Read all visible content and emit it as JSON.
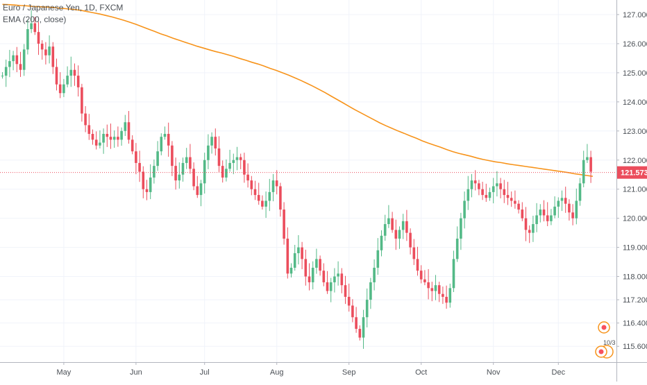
{
  "chart_data": {
    "type": "candlestick",
    "title": "Euro / Japanese Yen, 1D, FXCM",
    "indicator_label": "EMA (200, close)",
    "y_axis_ticks": [
      "127.000",
      "126.000",
      "125.000",
      "124.000",
      "123.000",
      "122.000",
      "121.000",
      "120.000",
      "119.000",
      "118.000",
      "117.200",
      "116.400",
      "115.600"
    ],
    "y_axis_tick_values": [
      127.0,
      126.0,
      125.0,
      124.0,
      123.0,
      122.0,
      121.0,
      120.0,
      119.0,
      118.0,
      117.2,
      116.4,
      115.6
    ],
    "x_axis_ticks": [
      "May",
      "Jun",
      "Jul",
      "Aug",
      "Sep",
      "Oct",
      "Nov",
      "Dec"
    ],
    "x_axis_tick_bars": [
      17,
      37,
      56,
      76,
      96,
      116,
      136,
      154
    ],
    "bar_count": 164,
    "close_start": 124.9,
    "closes": [
      124.9,
      125.2,
      125.4,
      125.6,
      125.3,
      125.1,
      125.8,
      126.5,
      126.7,
      126.4,
      126.0,
      125.8,
      125.6,
      125.9,
      125.2,
      124.6,
      124.3,
      124.6,
      124.9,
      125.1,
      124.9,
      124.5,
      123.6,
      123.2,
      122.9,
      122.7,
      122.5,
      122.6,
      122.9,
      122.8,
      122.7,
      122.8,
      122.7,
      123.0,
      123.3,
      122.7,
      122.3,
      121.9,
      121.6,
      121.0,
      120.9,
      121.4,
      121.8,
      122.3,
      122.8,
      122.9,
      122.5,
      121.8,
      121.3,
      121.5,
      121.9,
      122.1,
      121.7,
      121.1,
      120.8,
      121.2,
      122.0,
      122.5,
      122.8,
      122.4,
      121.8,
      121.4,
      121.7,
      121.9,
      122.0,
      122.1,
      122.0,
      121.5,
      121.3,
      121.0,
      120.8,
      120.6,
      120.4,
      120.6,
      120.9,
      121.3,
      121.1,
      120.3,
      119.3,
      118.1,
      118.3,
      118.8,
      119.0,
      118.6,
      118.0,
      117.8,
      118.3,
      118.6,
      118.2,
      117.8,
      117.5,
      117.8,
      118.0,
      118.1,
      117.7,
      117.3,
      117.0,
      116.6,
      116.2,
      115.9,
      116.6,
      117.2,
      117.8,
      118.3,
      118.9,
      119.4,
      119.8,
      120.0,
      119.6,
      119.3,
      119.6,
      119.9,
      119.5,
      119.0,
      118.6,
      118.2,
      117.9,
      117.8,
      117.6,
      117.5,
      117.7,
      117.4,
      117.3,
      117.1,
      117.6,
      118.6,
      119.3,
      120.0,
      120.6,
      121.0,
      121.3,
      121.2,
      121.0,
      120.8,
      120.7,
      120.9,
      121.1,
      121.2,
      121.0,
      120.8,
      120.7,
      120.6,
      120.5,
      120.3,
      120.0,
      119.6,
      119.5,
      119.8,
      120.1,
      120.3,
      120.1,
      119.9,
      120.1,
      120.4,
      120.6,
      120.7,
      120.5,
      120.2,
      120.0,
      120.6,
      121.2,
      122.0,
      122.1,
      121.6
    ],
    "ema_200": {
      "name": "EMA (200, close)",
      "values": [
        127.35,
        127.34,
        127.33,
        127.31,
        127.3,
        127.28,
        127.27,
        127.26,
        127.25,
        127.23,
        127.21,
        127.19,
        127.17,
        127.14,
        127.1,
        127.06,
        127.02,
        126.97,
        126.92,
        126.86,
        126.8,
        126.73,
        126.66,
        126.58,
        126.5,
        126.42,
        126.34,
        126.27,
        126.19,
        126.12,
        126.05,
        125.98,
        125.91,
        125.85,
        125.79,
        125.73,
        125.68,
        125.62,
        125.56,
        125.49,
        125.43,
        125.36,
        125.3,
        125.23,
        125.15,
        125.08,
        125.0,
        124.92,
        124.83,
        124.74,
        124.64,
        124.54,
        124.43,
        124.32,
        124.2,
        124.08,
        123.96,
        123.84,
        123.72,
        123.61,
        123.5,
        123.39,
        123.28,
        123.18,
        123.09,
        123.0,
        122.92,
        122.83,
        122.75,
        122.66,
        122.58,
        122.51,
        122.44,
        122.36,
        122.29,
        122.23,
        122.18,
        122.13,
        122.07,
        122.02,
        121.98,
        121.94,
        121.91,
        121.87,
        121.84,
        121.81,
        121.78,
        121.75,
        121.72,
        121.69,
        121.66,
        121.63,
        121.6,
        121.57,
        121.53,
        121.5,
        121.47,
        121.44
      ],
      "x_start": 0,
      "x_step": 1.686
    },
    "last_price": "121.573",
    "last_price_value": 121.573,
    "colors": {
      "up": "#53b987",
      "down": "#eb4d5c",
      "ema": "#f7931a",
      "price_label": "#eb4d5c",
      "axis_text": "#4a4f55"
    },
    "ylim": [
      115.35,
      127.45
    ],
    "grid": true,
    "badge_text": "10/3"
  }
}
